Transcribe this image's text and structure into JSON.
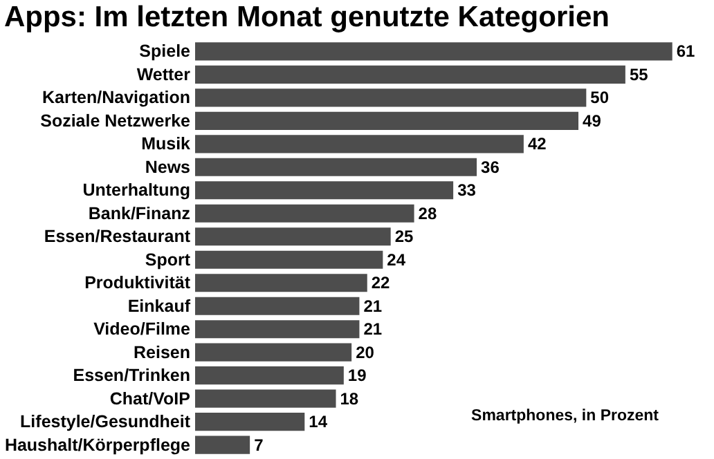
{
  "chart_data": {
    "type": "bar",
    "orientation": "horizontal",
    "title": "Apps: Im letzten Monat genutzte Kategorien",
    "categories": [
      "Spiele",
      "Wetter",
      "Karten/Navigation",
      "Soziale Netzwerke",
      "Musik",
      "News",
      "Unterhaltung",
      "Bank/Finanz",
      "Essen/Restaurant",
      "Sport",
      "Produktivität",
      "Einkauf",
      "Video/Filme",
      "Reisen",
      "Essen/Trinken",
      "Chat/VoIP",
      "Lifestyle/Gesundheit",
      "Haushalt/Körperpflege"
    ],
    "values": [
      61,
      55,
      50,
      49,
      42,
      36,
      33,
      28,
      25,
      24,
      22,
      21,
      21,
      20,
      19,
      18,
      14,
      7
    ],
    "color": "#4d4d4d",
    "data_labels": true,
    "annotations": [
      "Smartphones, in Prozent"
    ]
  }
}
